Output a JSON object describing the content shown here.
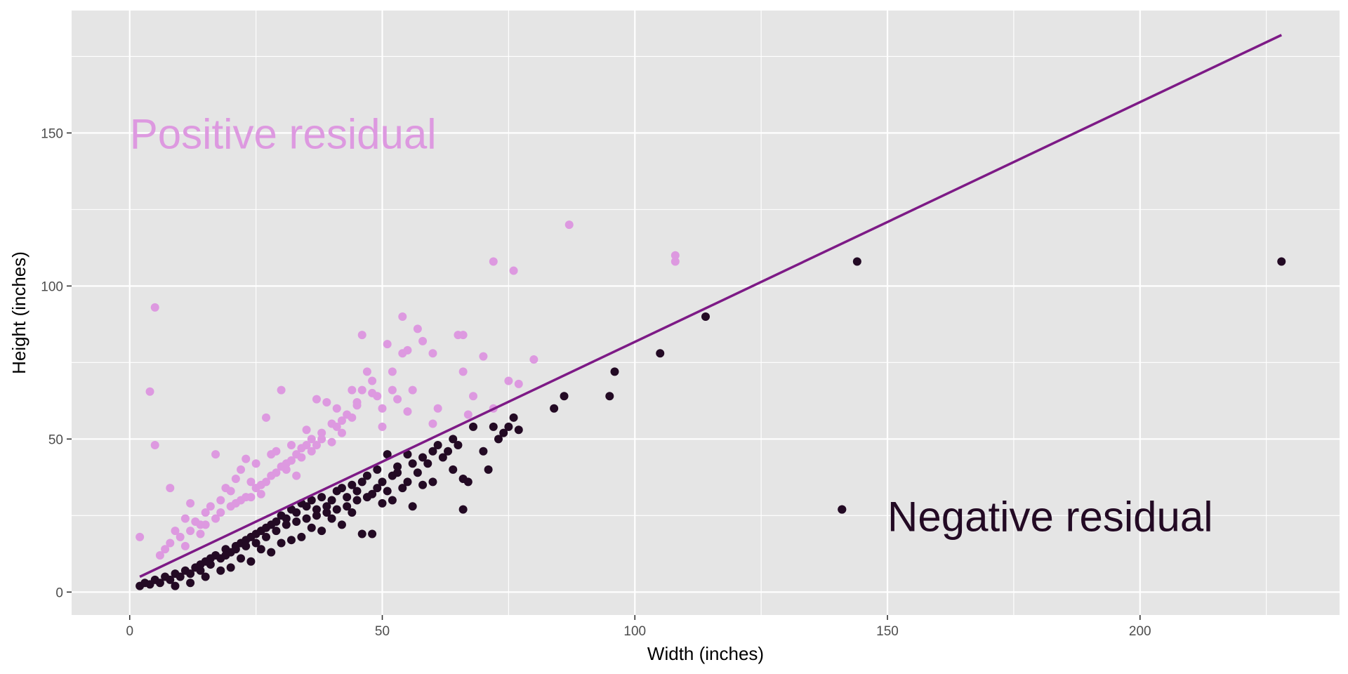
{
  "chart_data": {
    "type": "scatter",
    "title": "",
    "xlabel": "Width (inches)",
    "ylabel": "Height (inches)",
    "xlim": [
      -11.5,
      239.5
    ],
    "ylim": [
      -7.5,
      190
    ],
    "x_ticks": [
      0,
      50,
      100,
      150,
      200
    ],
    "y_ticks": [
      0,
      50,
      100,
      150
    ],
    "grid": true,
    "legend": "none",
    "colors": {
      "panel": "#e5e5e5",
      "grid": "#ffffff",
      "positive": "#dd99e0",
      "negative": "#230a24",
      "fit_line": "#7d1a86"
    },
    "fit_line": {
      "x": [
        2,
        228
      ],
      "y": [
        5,
        182
      ]
    },
    "annotations": [
      {
        "id": "positive",
        "text": "Positive residual",
        "x": 0,
        "y": 150,
        "align": "start"
      },
      {
        "id": "negative",
        "text": "Negative residual",
        "x": 150,
        "y": 25,
        "align": "start"
      }
    ],
    "series": [
      {
        "name": "Positive residual",
        "points": [
          [
            2,
            18
          ],
          [
            4,
            65.5
          ],
          [
            5,
            93
          ],
          [
            5,
            48
          ],
          [
            8,
            34
          ],
          [
            6,
            12
          ],
          [
            7,
            14
          ],
          [
            8,
            16
          ],
          [
            10,
            18
          ],
          [
            11,
            24
          ],
          [
            12,
            20
          ],
          [
            12,
            29
          ],
          [
            14,
            22
          ],
          [
            15,
            26
          ],
          [
            16,
            28
          ],
          [
            17,
            45
          ],
          [
            18,
            30
          ],
          [
            19,
            34
          ],
          [
            20,
            33
          ],
          [
            21,
            37
          ],
          [
            22,
            40
          ],
          [
            23,
            43.5
          ],
          [
            24,
            36
          ],
          [
            25,
            42
          ],
          [
            26,
            32
          ],
          [
            27,
            57
          ],
          [
            28,
            45
          ],
          [
            29,
            46
          ],
          [
            30,
            66
          ],
          [
            31,
            40
          ],
          [
            32,
            48
          ],
          [
            33,
            38
          ],
          [
            34,
            44
          ],
          [
            35,
            53
          ],
          [
            36,
            46
          ],
          [
            37,
            63
          ],
          [
            38,
            50
          ],
          [
            39,
            62
          ],
          [
            40,
            55
          ],
          [
            41,
            60
          ],
          [
            42,
            52
          ],
          [
            43,
            58
          ],
          [
            44,
            66
          ],
          [
            45,
            61
          ],
          [
            46,
            84
          ],
          [
            47,
            72
          ],
          [
            48,
            69
          ],
          [
            50,
            60
          ],
          [
            51,
            81
          ],
          [
            52,
            72
          ],
          [
            53,
            63
          ],
          [
            54,
            90
          ],
          [
            55,
            79
          ],
          [
            56,
            66
          ],
          [
            57,
            86
          ],
          [
            58,
            82
          ],
          [
            60,
            78
          ],
          [
            61,
            60
          ],
          [
            65,
            84
          ],
          [
            66,
            72
          ],
          [
            67,
            58
          ],
          [
            70,
            77
          ],
          [
            72,
            108
          ],
          [
            75,
            69
          ],
          [
            76,
            105
          ],
          [
            77,
            68
          ],
          [
            80,
            76
          ],
          [
            87,
            120
          ],
          [
            108,
            110
          ],
          [
            108,
            108
          ],
          [
            9,
            20
          ],
          [
            13,
            23
          ],
          [
            18,
            26
          ],
          [
            22,
            30
          ],
          [
            26,
            35
          ],
          [
            30,
            41
          ],
          [
            34,
            47
          ],
          [
            38,
            52
          ],
          [
            42,
            56
          ],
          [
            46,
            66
          ],
          [
            15,
            22
          ],
          [
            20,
            28
          ],
          [
            25,
            34
          ],
          [
            28,
            38
          ],
          [
            32,
            43
          ],
          [
            36,
            50
          ],
          [
            44,
            57
          ],
          [
            48,
            65
          ],
          [
            24,
            31
          ],
          [
            27,
            36
          ],
          [
            31,
            42
          ],
          [
            35,
            48
          ],
          [
            40,
            49
          ],
          [
            50,
            54
          ],
          [
            55,
            59
          ],
          [
            60,
            55
          ],
          [
            68,
            64
          ],
          [
            72,
            60
          ],
          [
            11,
            15
          ],
          [
            14,
            19
          ],
          [
            17,
            24
          ],
          [
            21,
            29
          ],
          [
            23,
            31
          ],
          [
            29,
            39
          ],
          [
            33,
            45
          ],
          [
            37,
            48
          ],
          [
            41,
            54
          ],
          [
            45,
            62
          ],
          [
            49,
            64
          ],
          [
            52,
            66
          ],
          [
            66,
            84
          ],
          [
            54,
            78
          ]
        ]
      },
      {
        "name": "Negative residual",
        "points": [
          [
            2,
            2
          ],
          [
            3,
            3
          ],
          [
            4,
            2.5
          ],
          [
            5,
            4
          ],
          [
            6,
            3
          ],
          [
            7,
            5
          ],
          [
            8,
            4
          ],
          [
            9,
            6
          ],
          [
            10,
            5
          ],
          [
            11,
            7
          ],
          [
            12,
            6
          ],
          [
            13,
            8
          ],
          [
            14,
            7
          ],
          [
            15,
            10
          ],
          [
            16,
            9
          ],
          [
            17,
            12
          ],
          [
            18,
            11
          ],
          [
            19,
            14
          ],
          [
            20,
            13
          ],
          [
            21,
            15
          ],
          [
            22,
            16
          ],
          [
            23,
            17
          ],
          [
            24,
            18
          ],
          [
            25,
            19
          ],
          [
            26,
            20
          ],
          [
            27,
            21
          ],
          [
            28,
            22
          ],
          [
            29,
            23
          ],
          [
            30,
            25
          ],
          [
            31,
            24
          ],
          [
            32,
            27
          ],
          [
            33,
            26
          ],
          [
            34,
            29
          ],
          [
            35,
            28
          ],
          [
            36,
            30
          ],
          [
            37,
            27
          ],
          [
            38,
            31
          ],
          [
            39,
            26
          ],
          [
            40,
            30
          ],
          [
            41,
            33
          ],
          [
            42,
            34
          ],
          [
            43,
            28
          ],
          [
            44,
            35
          ],
          [
            45,
            33
          ],
          [
            46,
            36
          ],
          [
            47,
            38
          ],
          [
            48,
            32
          ],
          [
            49,
            34
          ],
          [
            50,
            36
          ],
          [
            51,
            33
          ],
          [
            52,
            38
          ],
          [
            53,
            41
          ],
          [
            54,
            34
          ],
          [
            55,
            36
          ],
          [
            56,
            42
          ],
          [
            57,
            39
          ],
          [
            58,
            44
          ],
          [
            59,
            42
          ],
          [
            60,
            46
          ],
          [
            61,
            48
          ],
          [
            62,
            44
          ],
          [
            63,
            46
          ],
          [
            64,
            50
          ],
          [
            65,
            48
          ],
          [
            66,
            27
          ],
          [
            66,
            37
          ],
          [
            67,
            36
          ],
          [
            68,
            54
          ],
          [
            70,
            46
          ],
          [
            71,
            40
          ],
          [
            72,
            54
          ],
          [
            73,
            50
          ],
          [
            74,
            52
          ],
          [
            75,
            54
          ],
          [
            76,
            57
          ],
          [
            77,
            53
          ],
          [
            84,
            60
          ],
          [
            86,
            64
          ],
          [
            95,
            64
          ],
          [
            96,
            72
          ],
          [
            105,
            78
          ],
          [
            114,
            90
          ],
          [
            141,
            27
          ],
          [
            144,
            108
          ],
          [
            228,
            108
          ],
          [
            12,
            3
          ],
          [
            9,
            2
          ],
          [
            18,
            7
          ],
          [
            22,
            11
          ],
          [
            26,
            14
          ],
          [
            30,
            16
          ],
          [
            34,
            18
          ],
          [
            38,
            20
          ],
          [
            42,
            22
          ],
          [
            46,
            19
          ],
          [
            48,
            19
          ],
          [
            15,
            5
          ],
          [
            20,
            8
          ],
          [
            24,
            10
          ],
          [
            28,
            13
          ],
          [
            32,
            17
          ],
          [
            36,
            21
          ],
          [
            40,
            24
          ],
          [
            44,
            26
          ],
          [
            50,
            29
          ],
          [
            52,
            30
          ],
          [
            56,
            28
          ],
          [
            58,
            35
          ],
          [
            60,
            36
          ],
          [
            64,
            40
          ],
          [
            14,
            9
          ],
          [
            16,
            11
          ],
          [
            19,
            12
          ],
          [
            21,
            14
          ],
          [
            23,
            15
          ],
          [
            25,
            16
          ],
          [
            27,
            18
          ],
          [
            29,
            20
          ],
          [
            31,
            22
          ],
          [
            33,
            23
          ],
          [
            35,
            24
          ],
          [
            37,
            25
          ],
          [
            39,
            28
          ],
          [
            41,
            27
          ],
          [
            43,
            31
          ],
          [
            45,
            30
          ],
          [
            47,
            31
          ],
          [
            49,
            40
          ],
          [
            51,
            45
          ],
          [
            53,
            39
          ],
          [
            55,
            45
          ]
        ]
      }
    ]
  }
}
